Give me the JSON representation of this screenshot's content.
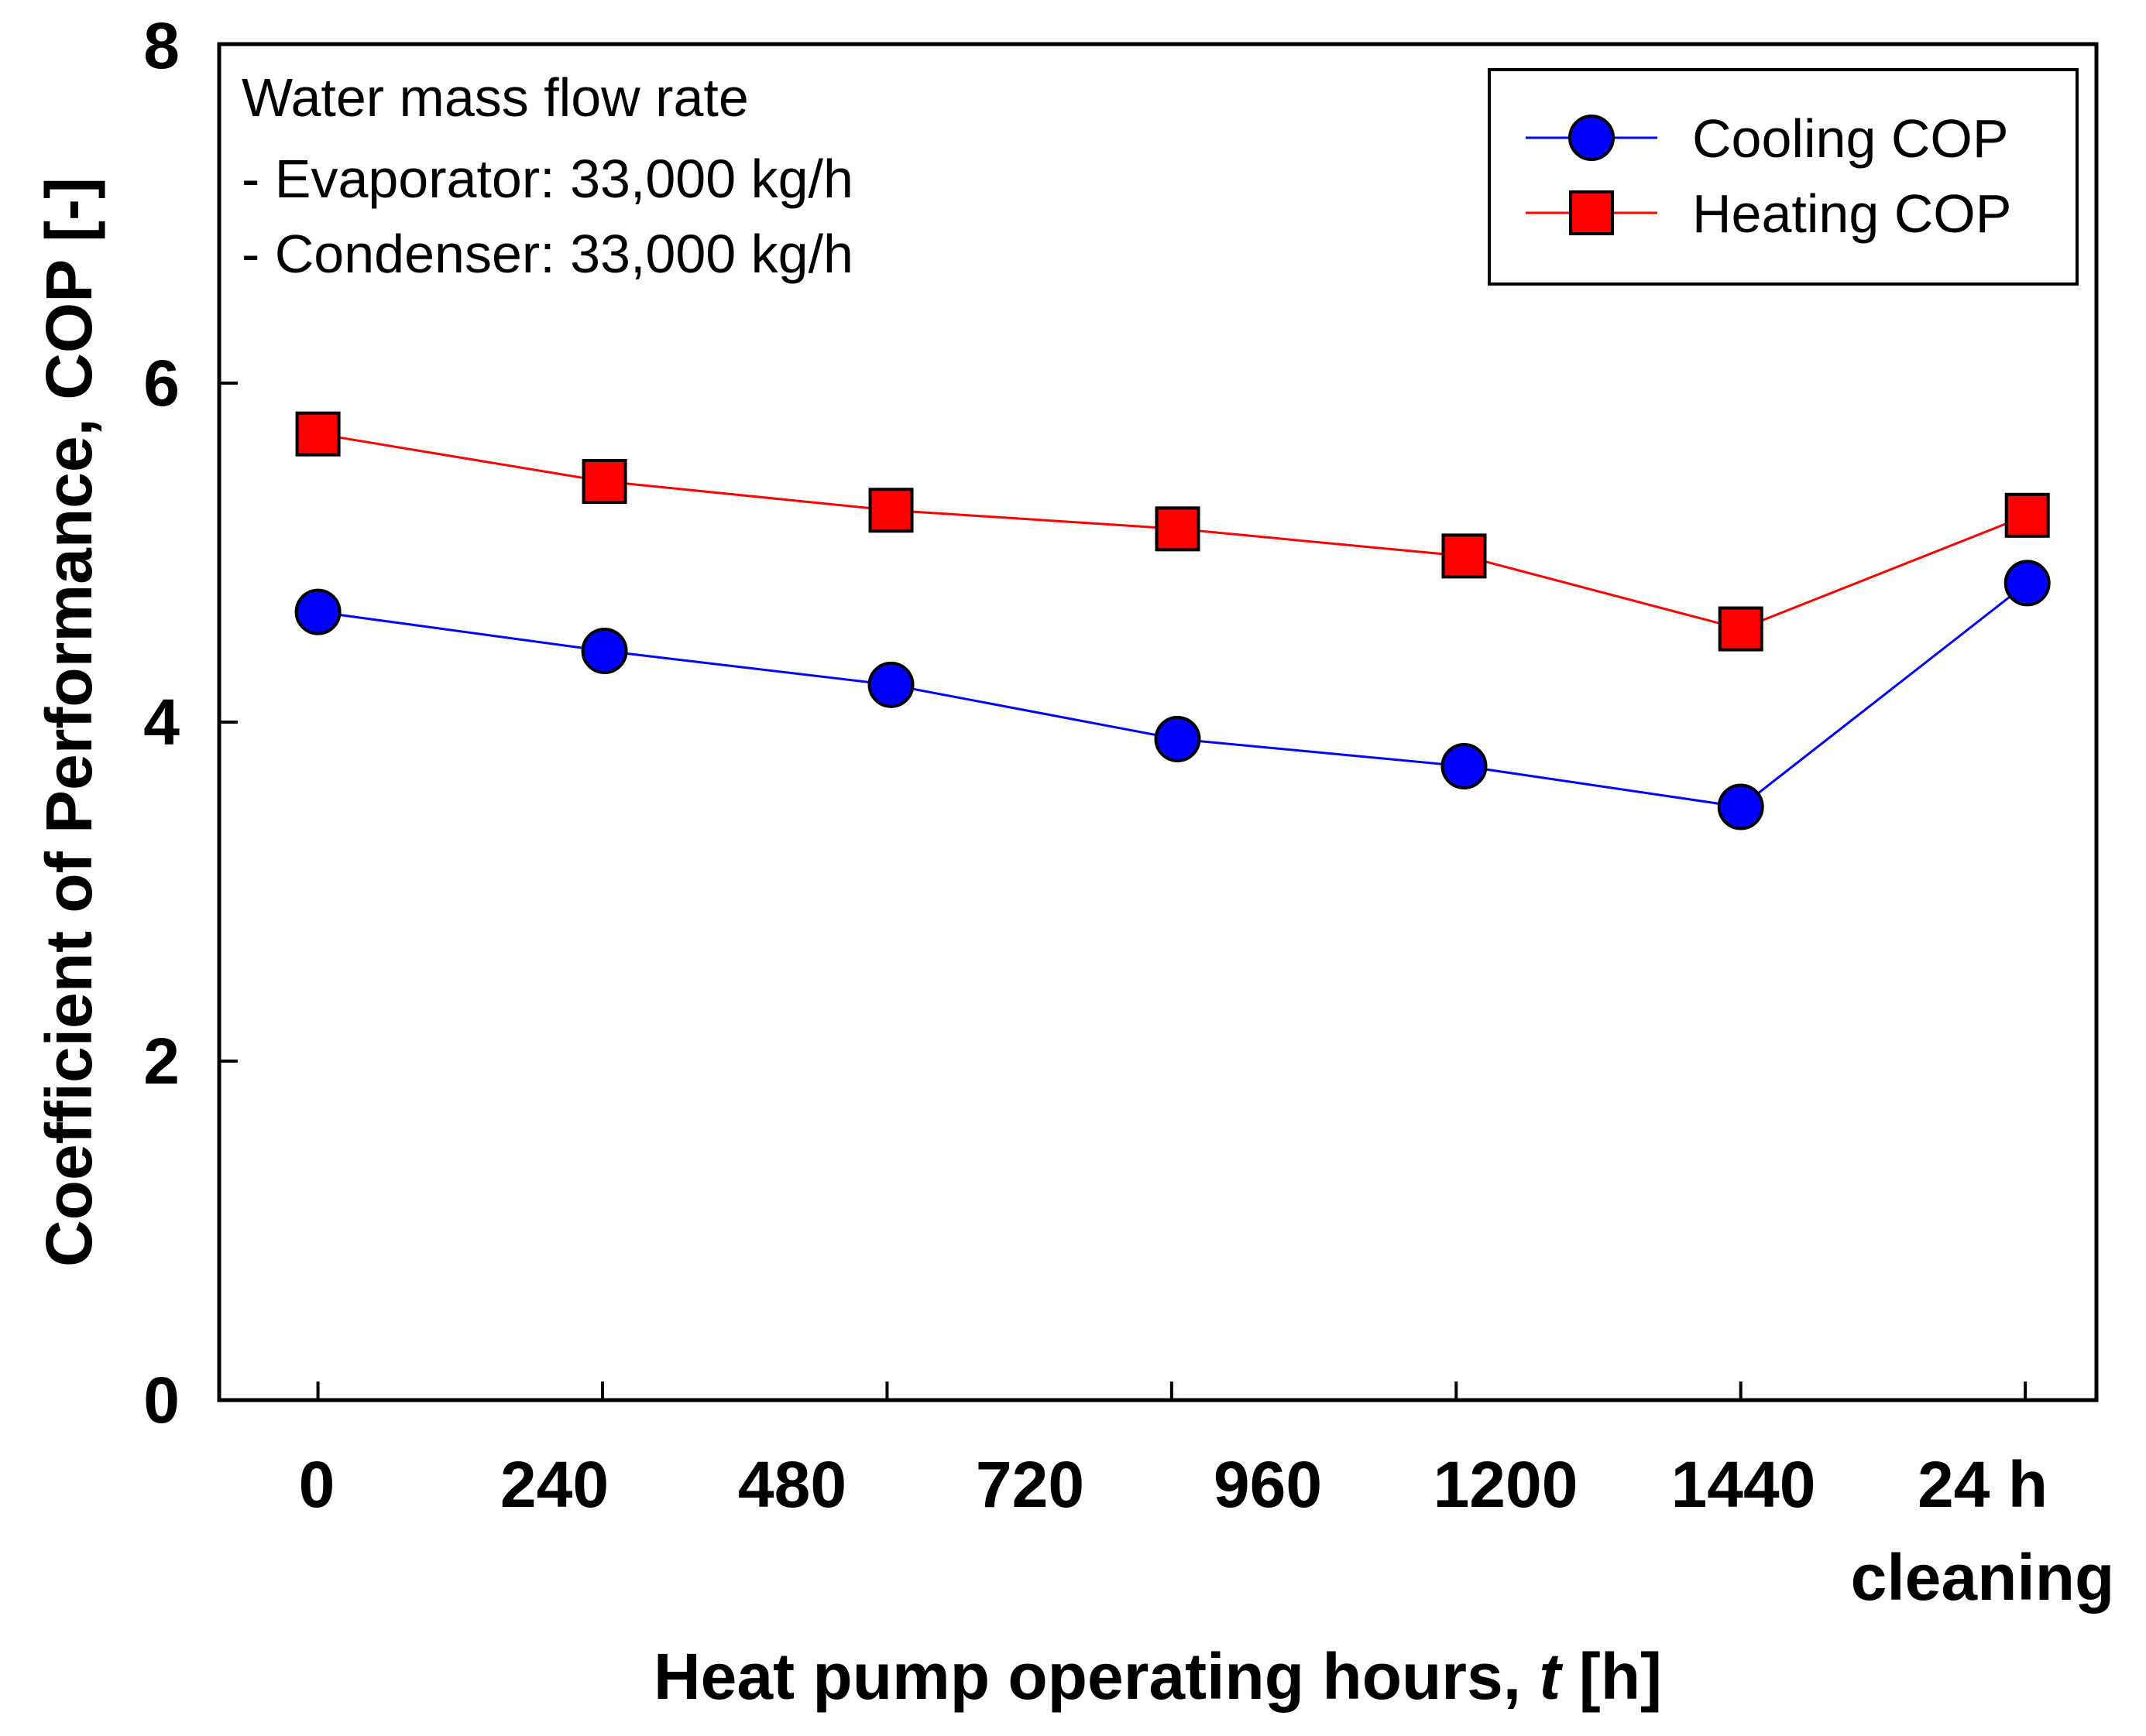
{
  "chart_data": {
    "type": "line",
    "title": "",
    "xlabel_main": "Heat pump operating hours, ",
    "xlabel_var": "t",
    "xlabel_unit": " [h]",
    "ylabel": "Coefficient of Performance, COP [-]",
    "ylim": [
      0,
      8
    ],
    "yticks": [
      "0",
      "2",
      "4",
      "6",
      "8"
    ],
    "x_tick_labels": [
      "0",
      "240",
      "480",
      "720",
      "960",
      "1200",
      "1440",
      "24 h",
      "cleaning"
    ],
    "points_x": [
      0,
      290,
      580,
      870,
      1160,
      1440,
      1730
    ],
    "x_axis_range": [
      -100,
      1800
    ],
    "annotation": {
      "line1": "Water mass flow rate",
      "line2": "- Evaporator: 33,000 kg/h",
      "line3": "- Condenser: 33,000 kg/h"
    },
    "legend_position": "top-right",
    "series": [
      {
        "name": "Cooling COP",
        "color": "#0000ff",
        "marker": "circle",
        "values": [
          4.65,
          4.42,
          4.22,
          3.9,
          3.74,
          3.5,
          4.82
        ]
      },
      {
        "name": "Heating COP",
        "color": "#ff0000",
        "marker": "square",
        "values": [
          5.7,
          5.42,
          5.25,
          5.14,
          4.98,
          4.55,
          5.22
        ]
      }
    ]
  }
}
